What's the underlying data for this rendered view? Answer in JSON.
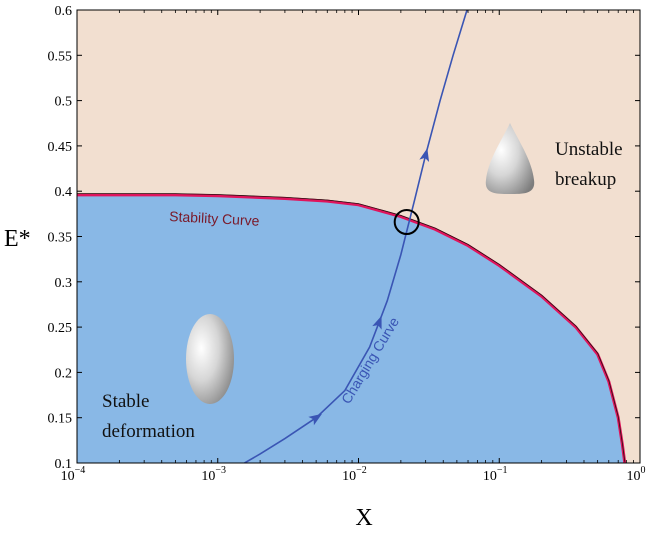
{
  "chart_data": {
    "type": "area",
    "x_scale": "log",
    "xlim": [
      0.0001,
      1
    ],
    "ylim": [
      0.1,
      0.6
    ],
    "xlabel": "X",
    "ylabel": "E*",
    "x_ticks": [
      {
        "value": 0.0001,
        "base": "10",
        "exp": "−4"
      },
      {
        "value": 0.001,
        "base": "10",
        "exp": "−3"
      },
      {
        "value": 0.01,
        "base": "10",
        "exp": "−2"
      },
      {
        "value": 0.1,
        "base": "10",
        "exp": "−1"
      },
      {
        "value": 1,
        "base": "10",
        "exp": "0"
      }
    ],
    "y_ticks": [
      0.1,
      0.15,
      0.2,
      0.25,
      0.3,
      0.35,
      0.4,
      0.45,
      0.5,
      0.55,
      0.6
    ],
    "y_tick_labels": [
      "0.1",
      "0.15",
      "0.2",
      "0.25",
      "0.3",
      "0.35",
      "0.4",
      "0.45",
      "0.5",
      "0.55",
      "0.6"
    ],
    "grid": false,
    "series": [
      {
        "name": "Stability Curve",
        "color": "#e0145c",
        "x": [
          0.0001,
          0.0005,
          0.001,
          0.003,
          0.006,
          0.01,
          0.02,
          0.035,
          0.06,
          0.1,
          0.2,
          0.35,
          0.5,
          0.6,
          0.7,
          0.75,
          0.78
        ],
        "y": [
          0.396,
          0.396,
          0.395,
          0.392,
          0.389,
          0.385,
          0.372,
          0.358,
          0.34,
          0.318,
          0.284,
          0.25,
          0.22,
          0.19,
          0.15,
          0.12,
          0.1
        ]
      },
      {
        "name": "Charging Curve",
        "color": "#3a55b4",
        "x": [
          0.00155,
          0.002,
          0.003,
          0.005,
          0.008,
          0.012,
          0.016,
          0.02,
          0.025,
          0.03,
          0.038,
          0.047,
          0.059
        ],
        "y": [
          0.1,
          0.11,
          0.127,
          0.15,
          0.18,
          0.228,
          0.279,
          0.33,
          0.39,
          0.44,
          0.5,
          0.55,
          0.6
        ]
      }
    ],
    "regions": [
      {
        "label": "Stable deformation",
        "color": "#89b8e6"
      },
      {
        "label": "Unstable breakup",
        "color": "#f2dfd0"
      }
    ],
    "marker": {
      "shape": "circle",
      "x": 0.022,
      "y": 0.366
    }
  },
  "annotations": {
    "stable_line1": "Stable",
    "stable_line2": "deformation",
    "unstable_line1": "Unstable",
    "unstable_line2": "breakup",
    "stability_curve": "Stability Curve",
    "charging_curve": "Charging Curve"
  }
}
